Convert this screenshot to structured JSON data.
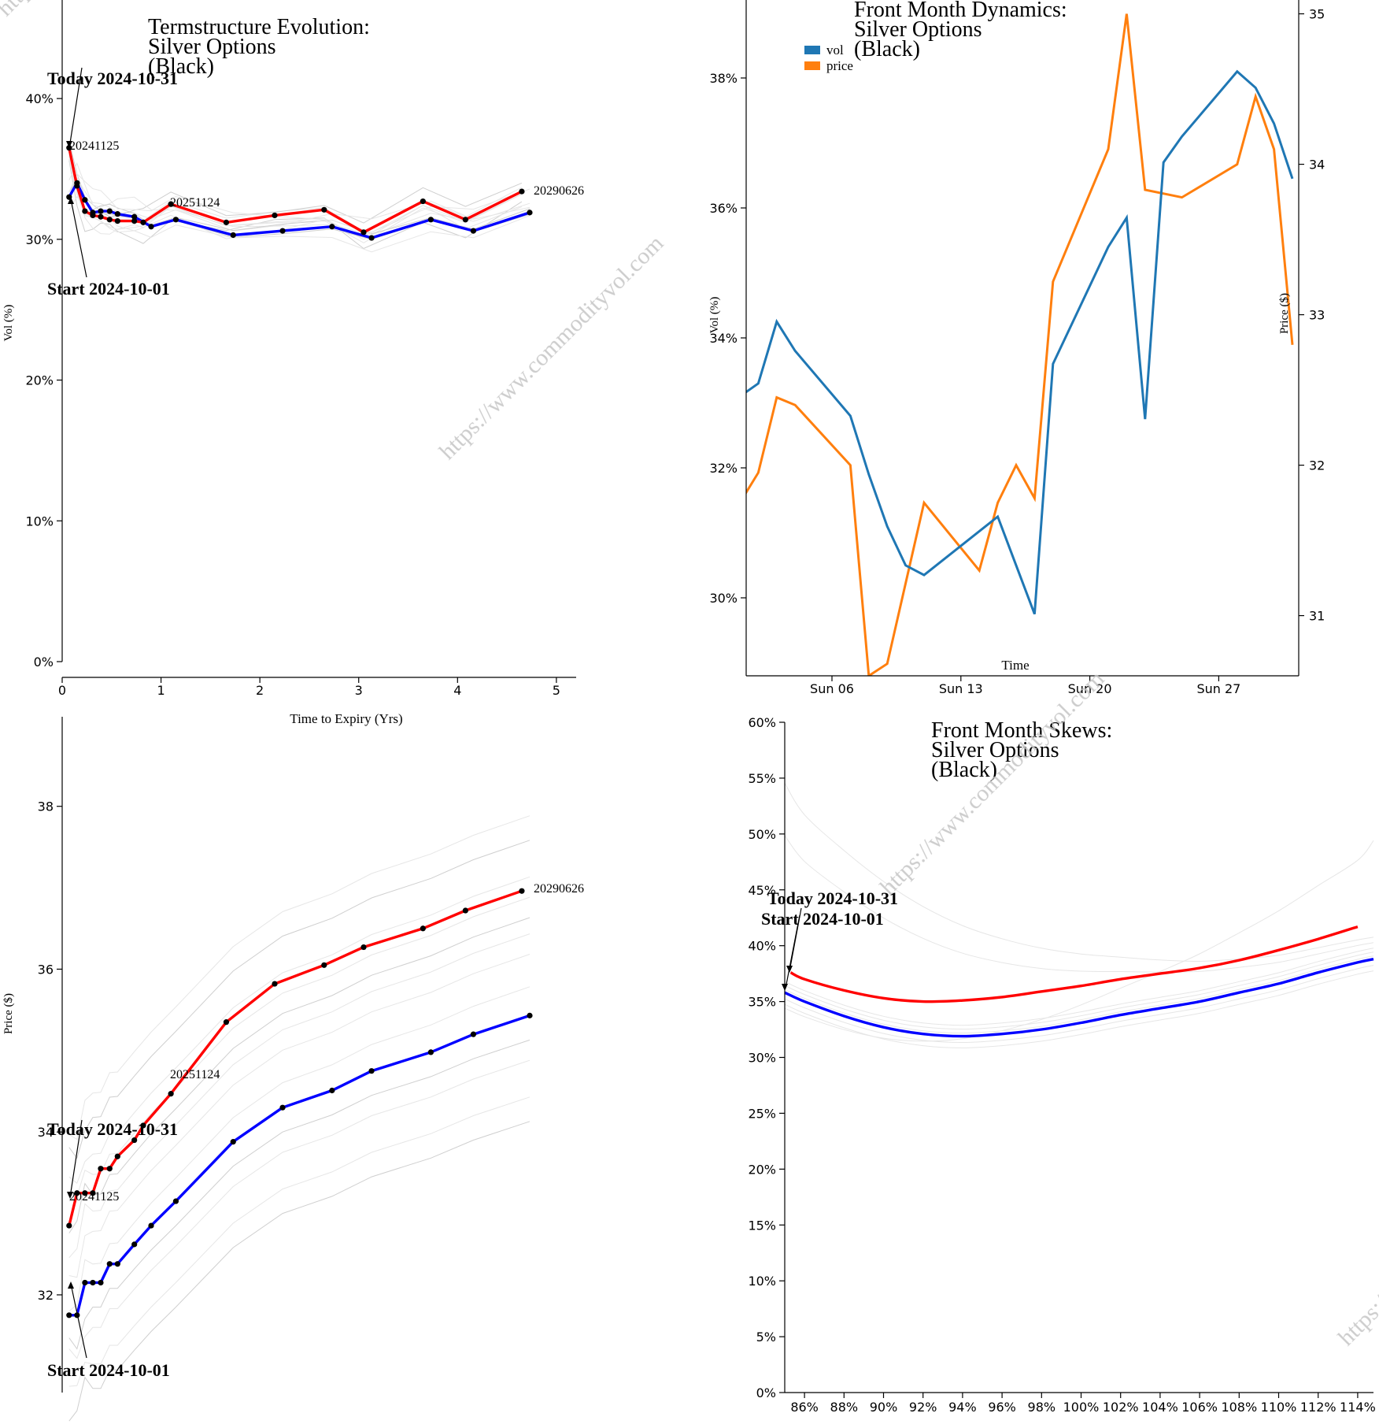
{
  "watermark": "https://www.commodityvol.com",
  "chart_data": [
    {
      "id": "termstructure",
      "type": "line",
      "title_lines": [
        "Termstructure Evolution:",
        "Silver Options",
        "(Black)"
      ],
      "xlabel": "Time to Expiry (Yrs)",
      "ylabel": "Vol (%)",
      "xlim": [
        0,
        5.2
      ],
      "ylim": [
        0,
        47
      ],
      "x_ticks": [
        0,
        1,
        2,
        3,
        4,
        5
      ],
      "y_ticks": [
        0,
        10,
        20,
        30,
        40
      ],
      "y_tick_suffix": "%",
      "annotations": {
        "today": "Today 2024-10-31",
        "start": "Start 2024-10-01",
        "contract_labels": [
          "20241125",
          "20251124",
          "20290626"
        ]
      },
      "series": [
        {
          "name": "Today 2024-10-31",
          "color": "#ff0000",
          "x": [
            0.07,
            0.15,
            0.23,
            0.31,
            0.39,
            0.48,
            0.56,
            0.73,
            0.82,
            1.1,
            1.66,
            2.15,
            2.65,
            3.05,
            3.65,
            4.08,
            4.65
          ],
          "y": [
            36.5,
            33.8,
            32.0,
            31.7,
            31.6,
            31.4,
            31.3,
            31.3,
            31.2,
            32.5,
            31.2,
            31.7,
            32.1,
            30.5,
            32.7,
            31.4,
            33.4
          ]
        },
        {
          "name": "Start 2024-10-01",
          "color": "#0000ff",
          "x": [
            0.07,
            0.15,
            0.23,
            0.31,
            0.39,
            0.48,
            0.56,
            0.73,
            0.9,
            1.15,
            1.73,
            2.23,
            2.73,
            3.13,
            3.73,
            4.16,
            4.73
          ],
          "y": [
            33.0,
            34.0,
            32.8,
            31.9,
            32.0,
            32.0,
            31.8,
            31.6,
            30.9,
            31.4,
            30.3,
            30.6,
            30.9,
            30.1,
            31.4,
            30.6,
            31.9
          ]
        }
      ],
      "history_offsets": [
        -1.5,
        -1.0,
        -0.6,
        -0.2,
        0.3,
        0.7,
        1.0,
        1.4,
        -0.8,
        0.5,
        -1.2,
        1.7
      ]
    },
    {
      "id": "frontmonth",
      "type": "line",
      "title_lines": [
        "Front Month Dynamics:",
        "Silver Options",
        "(Black)"
      ],
      "xlabel": "Time",
      "ylabel": "Vol (%)",
      "ylabel_right": "Price ($)",
      "ylim": [
        28.8,
        39.2
      ],
      "ylim_right": [
        30.6,
        35.05
      ],
      "x_ticks": [
        "Sun 06",
        "Sun 13",
        "Sun 20",
        "Sun 27"
      ],
      "x_tick_days": [
        6,
        13,
        20,
        27
      ],
      "x_domain_days": [
        1,
        31
      ],
      "y_ticks": [
        30,
        32,
        34,
        36,
        38
      ],
      "y_tick_suffix": "%",
      "y_ticks_right": [
        31,
        32,
        33,
        34,
        35
      ],
      "legend": [
        "vol",
        "price"
      ],
      "series": [
        {
          "name": "vol",
          "color": "#1f77b4",
          "x": [
            1,
            2,
            3,
            4,
            7,
            8,
            9,
            10,
            11,
            15,
            16,
            17,
            18,
            21,
            22,
            23,
            24,
            25,
            28,
            29,
            30,
            31
          ],
          "y": [
            33.1,
            33.3,
            34.25,
            33.8,
            32.8,
            31.9,
            31.1,
            30.5,
            30.35,
            31.25,
            30.5,
            29.75,
            33.6,
            35.4,
            35.85,
            32.75,
            36.7,
            37.1,
            38.1,
            37.85,
            37.3,
            36.45
          ]
        },
        {
          "name": "price",
          "color": "#ff7f0e",
          "x": [
            1,
            2,
            3,
            4,
            7,
            8,
            9,
            11,
            14,
            15,
            16,
            17,
            18,
            21,
            22,
            23,
            25,
            28,
            29,
            30,
            31
          ],
          "y": [
            31.75,
            31.95,
            32.45,
            32.4,
            32.0,
            30.6,
            30.68,
            31.75,
            31.3,
            31.75,
            32.0,
            31.78,
            33.22,
            34.1,
            35.0,
            33.83,
            33.78,
            34.0,
            34.45,
            34.1,
            32.8
          ]
        }
      ]
    },
    {
      "id": "futures",
      "type": "line",
      "xlabel": "",
      "ylabel": "Price ($)",
      "xlim": [
        0,
        5.2
      ],
      "ylim": [
        30.8,
        39.1
      ],
      "y_ticks": [
        32,
        34,
        36,
        38
      ],
      "annotations": {
        "today": "Today 2024-10-31",
        "start": "Start 2024-10-01",
        "contract_labels": [
          "20241125",
          "20251124",
          "20290626"
        ]
      },
      "series": [
        {
          "name": "Today 2024-10-31",
          "color": "#ff0000",
          "x": [
            0.07,
            0.15,
            0.23,
            0.31,
            0.39,
            0.48,
            0.56,
            0.73,
            0.82,
            1.1,
            1.66,
            2.15,
            2.65,
            3.05,
            3.65,
            4.08,
            4.65
          ],
          "y": [
            32.85,
            33.25,
            33.25,
            33.25,
            33.55,
            33.55,
            33.7,
            33.9,
            34.08,
            34.47,
            35.35,
            35.82,
            36.05,
            36.27,
            36.5,
            36.72,
            36.96
          ]
        },
        {
          "name": "Start 2024-10-01",
          "color": "#0000ff",
          "x": [
            0.07,
            0.15,
            0.23,
            0.31,
            0.39,
            0.48,
            0.56,
            0.73,
            0.9,
            1.15,
            1.73,
            2.23,
            2.73,
            3.13,
            3.73,
            4.16,
            4.73
          ],
          "y": [
            31.75,
            31.75,
            32.15,
            32.15,
            32.15,
            32.38,
            32.38,
            32.62,
            32.85,
            33.15,
            33.88,
            34.3,
            34.51,
            34.75,
            34.98,
            35.2,
            35.43
          ]
        }
      ],
      "history_offsets": [
        -1.3,
        -1.0,
        -0.55,
        -0.3,
        0.6,
        0.85,
        1.05,
        1.3,
        1.55,
        2.0,
        2.3,
        0.2
      ]
    },
    {
      "id": "skews",
      "type": "line",
      "title_lines": [
        "Front Month Skews:",
        "Silver Options",
        "(Black)"
      ],
      "xlabel": "",
      "ylabel": "",
      "xlim": [
        85,
        114.8
      ],
      "ylim": [
        0,
        60
      ],
      "x_ticks": [
        86,
        88,
        90,
        92,
        94,
        96,
        98,
        100,
        102,
        104,
        106,
        108,
        110,
        112,
        114
      ],
      "x_tick_suffix": "%",
      "y_ticks": [
        0,
        5,
        10,
        15,
        20,
        25,
        30,
        35,
        40,
        45,
        50,
        55,
        60
      ],
      "y_tick_suffix": "%",
      "annotations": {
        "today": "Today 2024-10-31",
        "start": "Start 2024-10-01"
      },
      "series": [
        {
          "name": "Today 2024-10-31",
          "color": "#ff0000",
          "x": [
            85.3,
            86,
            88,
            90,
            92,
            94,
            96,
            98,
            100,
            102,
            104,
            106,
            108,
            110,
            112,
            114
          ],
          "y": [
            37.6,
            37.0,
            36.0,
            35.3,
            35.0,
            35.1,
            35.4,
            35.9,
            36.4,
            37.0,
            37.5,
            38.0,
            38.7,
            39.6,
            40.6,
            41.7
          ]
        },
        {
          "name": "Start 2024-10-01",
          "color": "#0000ff",
          "x": [
            85,
            86,
            88,
            90,
            92,
            94,
            96,
            98,
            100,
            102,
            104,
            106,
            108,
            110,
            112,
            114,
            114.8
          ],
          "y": [
            35.8,
            35.0,
            33.7,
            32.7,
            32.1,
            31.9,
            32.1,
            32.5,
            33.1,
            33.8,
            34.4,
            35.0,
            35.8,
            36.6,
            37.6,
            38.5,
            38.8
          ]
        }
      ],
      "history_offsets": [
        -1.5,
        -0.8,
        0.4,
        0.9,
        1.4,
        2.1,
        -2.0,
        2.8
      ]
    }
  ]
}
